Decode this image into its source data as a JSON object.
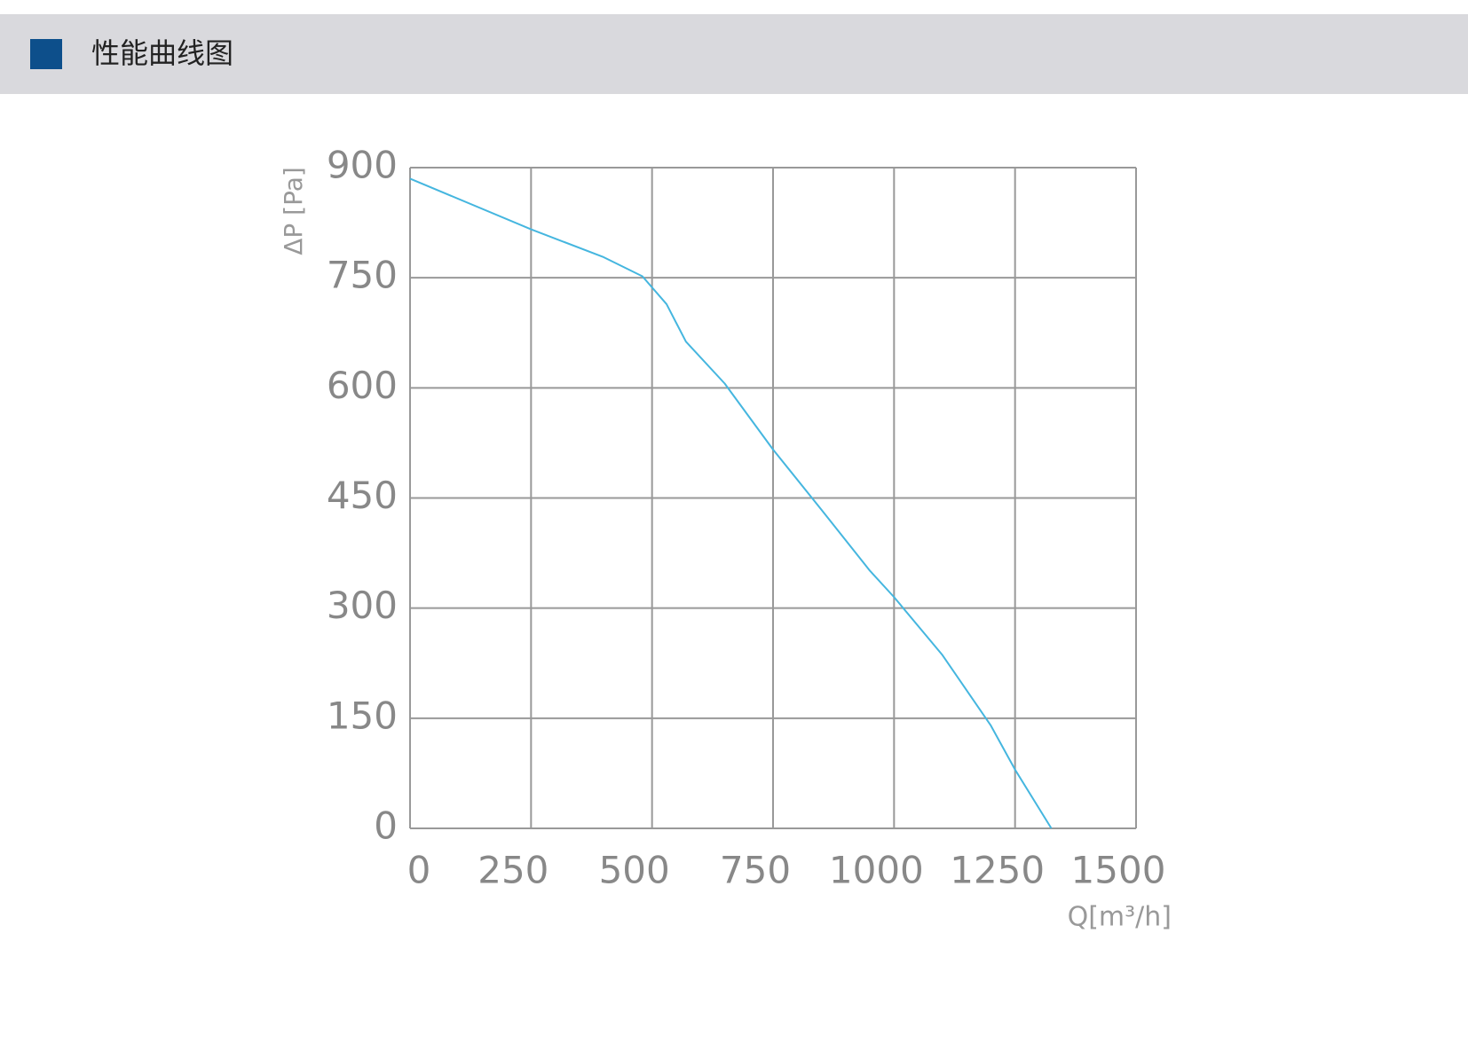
{
  "header": {
    "title": "性能曲线图"
  },
  "chart_data": {
    "type": "line",
    "y_label": "ΔP [Pa]",
    "x_label": "Q[m³/h]",
    "x": [
      0,
      250,
      400,
      480,
      530,
      570,
      650,
      750,
      850,
      950,
      1000,
      1100,
      1200,
      1250,
      1325
    ],
    "series": [
      {
        "color": "#45b6df",
        "values": [
          885,
          816,
          778,
          752,
          714,
          663,
          606,
          516,
          434,
          351,
          315,
          236,
          140,
          80,
          0
        ]
      }
    ],
    "xlim": [
      0,
      1500
    ],
    "xticks": [
      0,
      250,
      500,
      750,
      1000,
      1250,
      1500
    ],
    "ylim": [
      0,
      900
    ],
    "yticks": [
      0,
      150,
      300,
      450,
      600,
      750,
      900
    ],
    "grid": true
  }
}
